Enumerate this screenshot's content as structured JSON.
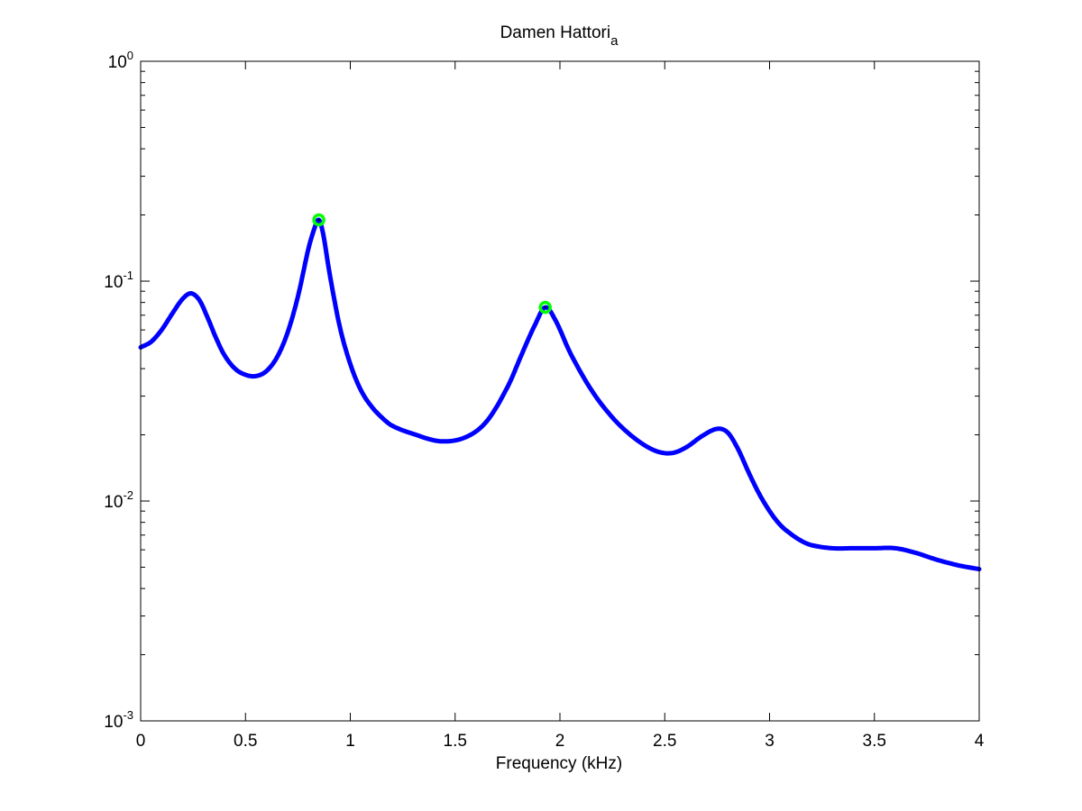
{
  "chart_data": {
    "type": "line",
    "title": "Damen Hattori",
    "title_subscript": "a",
    "xlabel": "Frequency (kHz)",
    "ylabel": "",
    "xlim": [
      0,
      4
    ],
    "ylim": [
      0.001,
      1
    ],
    "yscale": "log",
    "grid": false,
    "x_ticks": [
      {
        "value": 0,
        "label": "0"
      },
      {
        "value": 0.5,
        "label": "0.5"
      },
      {
        "value": 1,
        "label": "1"
      },
      {
        "value": 1.5,
        "label": "1.5"
      },
      {
        "value": 2,
        "label": "2"
      },
      {
        "value": 2.5,
        "label": "2.5"
      },
      {
        "value": 3,
        "label": "3"
      },
      {
        "value": 3.5,
        "label": "3.5"
      },
      {
        "value": 4,
        "label": "4"
      }
    ],
    "y_ticks": [
      {
        "value": 1,
        "base": "10",
        "exp": "0"
      },
      {
        "value": 0.1,
        "base": "10",
        "exp": "-1"
      },
      {
        "value": 0.01,
        "base": "10",
        "exp": "-2"
      },
      {
        "value": 0.001,
        "base": "10",
        "exp": "-3"
      }
    ],
    "series": [
      {
        "color": "#0000ff",
        "x": [
          0,
          0.05,
          0.1,
          0.15,
          0.2,
          0.24,
          0.28,
          0.32,
          0.36,
          0.4,
          0.45,
          0.5,
          0.55,
          0.6,
          0.65,
          0.7,
          0.75,
          0.8,
          0.83,
          0.85,
          0.87,
          0.9,
          0.95,
          1.0,
          1.05,
          1.1,
          1.15,
          1.2,
          1.3,
          1.43,
          1.55,
          1.65,
          1.75,
          1.82,
          1.88,
          1.93,
          1.98,
          2.05,
          2.15,
          2.25,
          2.35,
          2.45,
          2.53,
          2.6,
          2.68,
          2.75,
          2.8,
          2.85,
          2.9,
          2.95,
          3.0,
          3.05,
          3.1,
          3.15,
          3.2,
          3.3,
          3.4,
          3.5,
          3.6,
          3.7,
          3.8,
          3.9,
          4.0
        ],
        "y": [
          0.05,
          0.053,
          0.06,
          0.071,
          0.083,
          0.088,
          0.082,
          0.068,
          0.055,
          0.046,
          0.04,
          0.0375,
          0.037,
          0.039,
          0.045,
          0.058,
          0.085,
          0.14,
          0.175,
          0.19,
          0.165,
          0.11,
          0.062,
          0.042,
          0.032,
          0.027,
          0.024,
          0.022,
          0.0202,
          0.0187,
          0.0195,
          0.023,
          0.033,
          0.047,
          0.063,
          0.076,
          0.066,
          0.047,
          0.032,
          0.024,
          0.0195,
          0.017,
          0.0165,
          0.0175,
          0.0198,
          0.0213,
          0.0205,
          0.0172,
          0.0135,
          0.0108,
          0.009,
          0.0078,
          0.0071,
          0.0066,
          0.0063,
          0.0061,
          0.0061,
          0.0061,
          0.0061,
          0.0058,
          0.0054,
          0.0051,
          0.0049
        ]
      }
    ],
    "markers": [
      {
        "x": 0.85,
        "y": 0.19,
        "color": "#00ff00"
      },
      {
        "x": 1.93,
        "y": 0.076,
        "color": "#00ff00"
      }
    ]
  }
}
